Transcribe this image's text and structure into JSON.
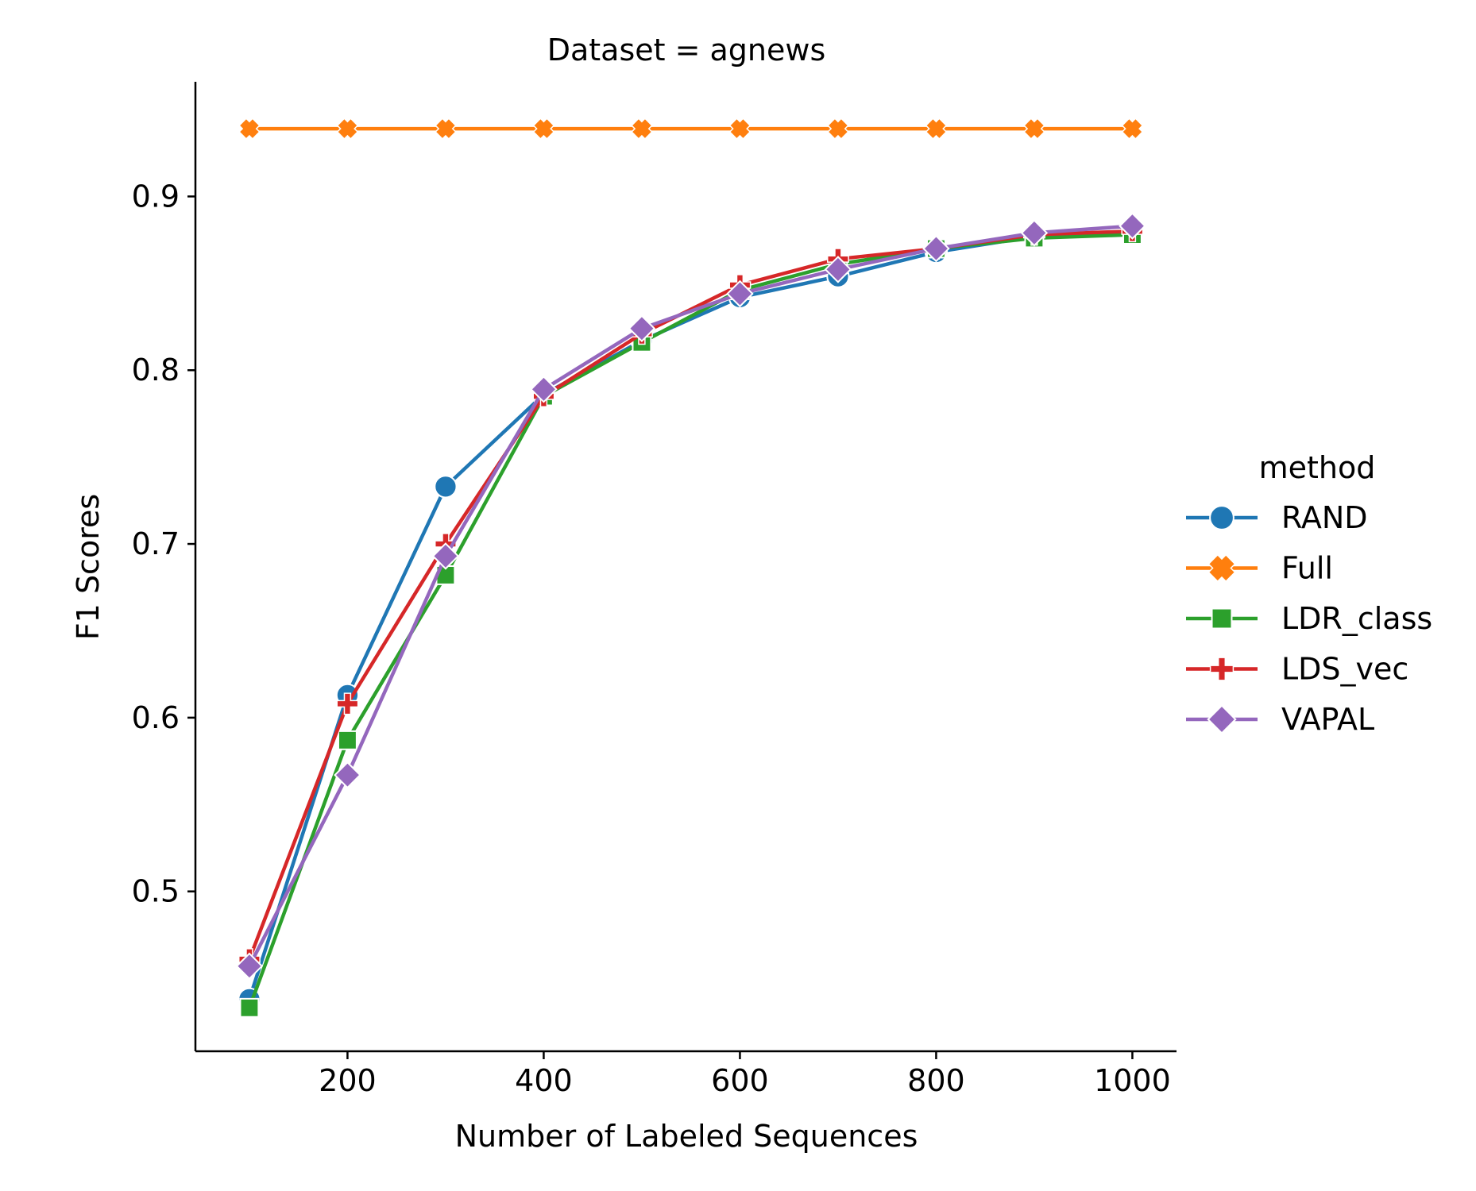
{
  "chart_data": {
    "type": "line",
    "title": "Dataset = agnews",
    "xlabel": "Number of Labeled Sequences",
    "ylabel": "F1 Scores",
    "x": [
      100,
      200,
      300,
      400,
      500,
      600,
      700,
      800,
      900,
      1000
    ],
    "xlim": [
      45,
      1045
    ],
    "ylim": [
      0.408,
      0.966
    ],
    "xticks": [
      200,
      400,
      600,
      800,
      1000
    ],
    "yticks": [
      0.5,
      0.6,
      0.7,
      0.8,
      0.9
    ],
    "xtick_labels": [
      "200",
      "400",
      "600",
      "800",
      "1000"
    ],
    "ytick_labels": [
      "0.5",
      "0.6",
      "0.7",
      "0.8",
      "0.9"
    ],
    "grid": false,
    "legend": {
      "title": "method",
      "placement": "right"
    },
    "series": [
      {
        "name": "RAND",
        "color": "#1f77b4",
        "marker": "circle",
        "values": [
          0.438,
          0.613,
          0.733,
          0.786,
          0.817,
          0.842,
          0.854,
          0.868,
          0.877,
          0.88
        ]
      },
      {
        "name": "Full",
        "color": "#ff7f0e",
        "marker": "x",
        "values": [
          0.939,
          0.939,
          0.939,
          0.939,
          0.939,
          0.939,
          0.939,
          0.939,
          0.939,
          0.939
        ]
      },
      {
        "name": "LDR_class",
        "color": "#2ca02c",
        "marker": "square",
        "values": [
          0.433,
          0.587,
          0.682,
          0.785,
          0.816,
          0.846,
          0.861,
          0.87,
          0.876,
          0.878
        ]
      },
      {
        "name": "LDS_vec",
        "color": "#d62728",
        "marker": "plus",
        "values": [
          0.461,
          0.608,
          0.7,
          0.785,
          0.821,
          0.849,
          0.864,
          0.87,
          0.878,
          0.88
        ]
      },
      {
        "name": "VAPAL",
        "color": "#9467bd",
        "marker": "diamond",
        "values": [
          0.457,
          0.567,
          0.693,
          0.789,
          0.824,
          0.844,
          0.858,
          0.87,
          0.879,
          0.883
        ]
      }
    ]
  }
}
